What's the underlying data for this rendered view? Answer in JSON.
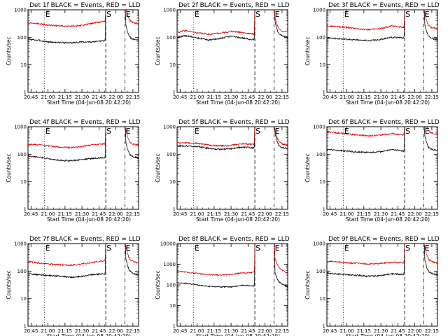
{
  "chart_data": {
    "type": "line",
    "layout": "3x3 grid",
    "legend": "in panel titles (BLACK = Events, RED = LLD)",
    "colors": {
      "events": "#000000",
      "lld": "#e00000",
      "markers": "#000000"
    },
    "yscale": "log",
    "grid": false,
    "xlabel": "Start Time (04-Jun-08 20:42:20)",
    "ylabel": "Counts/sec",
    "x_tick_labels": [
      "20:45",
      "21:00",
      "21:15",
      "21:30",
      "21:45",
      "22:00",
      "22:15"
    ],
    "xlim": [
      "20:42:20",
      "22:20:00"
    ],
    "markers": [
      {
        "label": "E",
        "time": "20:57",
        "style": "dotted"
      },
      {
        "label": "S",
        "time": "21:51",
        "style": "dashed"
      },
      {
        "label": "E",
        "time": "22:08",
        "style": "dash-dot"
      }
    ],
    "panels": [
      {
        "title": "Det 1f BLACK = Events, RED = LLD",
        "ylim": [
          1,
          1000
        ],
        "y_tick_labels": [
          "1",
          "10",
          "100",
          "1000"
        ],
        "xlabel": "",
        "ylabel": "Counts/sec",
        "series": [
          {
            "name": "Events",
            "color": "#000000",
            "x": [
              "20:42",
              "20:50",
              "21:00",
              "21:10",
              "21:20",
              "21:30",
              "21:40",
              "21:50",
              "21:51",
              "22:08",
              "22:12",
              "22:20"
            ],
            "values": [
              85,
              80,
              68,
              65,
              63,
              68,
              68,
              75,
              null,
              null,
              85,
              80
            ]
          },
          {
            "name": "LLD",
            "color": "#e00000",
            "x": [
              "20:42",
              "20:50",
              "21:00",
              "21:10",
              "21:20",
              "21:30",
              "21:40",
              "21:50",
              "21:51",
              "22:08",
              "22:12",
              "22:20"
            ],
            "values": [
              340,
              320,
              280,
              260,
              255,
              270,
              330,
              380,
              null,
              null,
              350,
              320
            ]
          }
        ]
      },
      {
        "title": "Det 2f BLACK = Events, RED = LLD",
        "ylim": [
          1,
          1000
        ],
        "y_tick_labels": [
          "1",
          "10",
          "100",
          "1000"
        ],
        "xlabel": "Start Time (04-Jun-08 20:42:20)",
        "ylabel": "",
        "series": [
          {
            "name": "Events",
            "color": "#000000",
            "x": [
              "20:42",
              "20:50",
              "21:00",
              "21:10",
              "21:20",
              "21:30",
              "21:40",
              "21:50",
              "21:51",
              "22:08",
              "22:12",
              "22:20"
            ],
            "values": [
              100,
              115,
              95,
              80,
              90,
              110,
              95,
              80,
              null,
              null,
              115,
              100
            ]
          },
          {
            "name": "LLD",
            "color": "#e00000",
            "x": [
              "20:42",
              "20:50",
              "21:00",
              "21:10",
              "21:20",
              "21:30",
              "21:40",
              "21:50",
              "21:51",
              "22:08",
              "22:12",
              "22:20"
            ],
            "values": [
              150,
              175,
              145,
              130,
              140,
              165,
              150,
              130,
              null,
              null,
              170,
              155
            ]
          }
        ]
      },
      {
        "title": "Det 3f BLACK = Events, RED = LLD",
        "ylim": [
          1,
          1000
        ],
        "y_tick_labels": [
          "1",
          "10",
          "100",
          "1000"
        ],
        "xlabel": "",
        "ylabel": "",
        "series": [
          {
            "name": "Events",
            "color": "#000000",
            "x": [
              "20:42",
              "20:50",
              "21:00",
              "21:10",
              "21:20",
              "21:30",
              "21:40",
              "21:50",
              "21:51",
              "22:08",
              "22:12",
              "22:20"
            ],
            "values": [
              95,
              90,
              85,
              80,
              75,
              85,
              100,
              95,
              null,
              null,
              90,
              85
            ]
          },
          {
            "name": "LLD",
            "color": "#e00000",
            "x": [
              "20:42",
              "20:50",
              "21:00",
              "21:10",
              "21:20",
              "21:30",
              "21:40",
              "21:50",
              "21:51",
              "22:08",
              "22:12",
              "22:20"
            ],
            "values": [
              260,
              250,
              230,
              200,
              190,
              210,
              260,
              230,
              null,
              null,
              220,
              210
            ]
          }
        ]
      },
      {
        "title": "Det 4f BLACK = Events, RED = LLD",
        "ylim": [
          1,
          1000
        ],
        "y_tick_labels": [
          "1",
          "10",
          "100",
          "1000"
        ],
        "xlabel": "",
        "ylabel": "Counts/sec",
        "series": [
          {
            "name": "Events",
            "color": "#000000",
            "x": [
              "20:42",
              "20:50",
              "21:00",
              "21:10",
              "21:20",
              "21:30",
              "21:40",
              "21:50",
              "21:51",
              "22:08",
              "22:12",
              "22:20"
            ],
            "values": [
              85,
              80,
              70,
              60,
              58,
              65,
              70,
              75,
              null,
              null,
              80,
              75
            ]
          },
          {
            "name": "LLD",
            "color": "#e00000",
            "x": [
              "20:42",
              "20:50",
              "21:00",
              "21:10",
              "21:20",
              "21:30",
              "21:40",
              "21:50",
              "21:51",
              "22:08",
              "22:12",
              "22:20"
            ],
            "values": [
              230,
              220,
              200,
              180,
              175,
              190,
              220,
              240,
              null,
              null,
              230,
              220
            ]
          }
        ]
      },
      {
        "title": "Det 5f BLACK = Events, RED = LLD",
        "ylim": [
          1,
          1000
        ],
        "y_tick_labels": [
          "1",
          "10",
          "100",
          "1000"
        ],
        "xlabel": "Start Time (04-Jun-08 20:42:20)",
        "ylabel": "",
        "series": [
          {
            "name": "Events",
            "color": "#000000",
            "x": [
              "20:42",
              "20:50",
              "21:00",
              "21:10",
              "21:20",
              "21:30",
              "21:40",
              "21:50",
              "21:51",
              "22:08",
              "22:12",
              "22:20"
            ],
            "values": [
              200,
              200,
              190,
              165,
              150,
              160,
              180,
              170,
              null,
              null,
              175,
              160
            ]
          },
          {
            "name": "LLD",
            "color": "#e00000",
            "x": [
              "20:42",
              "20:50",
              "21:00",
              "21:10",
              "21:20",
              "21:30",
              "21:40",
              "21:50",
              "21:51",
              "22:08",
              "22:12",
              "22:20"
            ],
            "values": [
              260,
              260,
              250,
              215,
              200,
              210,
              240,
              225,
              null,
              null,
              240,
              220
            ]
          }
        ]
      },
      {
        "title": "Det 6f BLACK = Events, RED = LLD",
        "ylim": [
          1,
          1000
        ],
        "y_tick_labels": [
          "1",
          "10",
          "100",
          "1000"
        ],
        "xlabel": "",
        "ylabel": "",
        "series": [
          {
            "name": "Events",
            "color": "#000000",
            "x": [
              "20:42",
              "20:50",
              "21:00",
              "21:10",
              "21:20",
              "21:30",
              "21:40",
              "21:50",
              "21:51",
              "22:08",
              "22:12",
              "22:20"
            ],
            "values": [
              150,
              140,
              130,
              120,
              115,
              125,
              150,
              130,
              null,
              null,
              145,
              140
            ]
          },
          {
            "name": "LLD",
            "color": "#e00000",
            "x": [
              "20:42",
              "20:50",
              "21:00",
              "21:10",
              "21:20",
              "21:30",
              "21:40",
              "21:50",
              "21:51",
              "22:08",
              "22:12",
              "22:20"
            ],
            "values": [
              650,
              600,
              550,
              500,
              470,
              500,
              560,
              500,
              null,
              null,
              580,
              560
            ]
          }
        ]
      },
      {
        "title": "Det 7f BLACK = Events, RED = LLD",
        "ylim": [
          1,
          1000
        ],
        "y_tick_labels": [
          "1",
          "10",
          "100",
          "1000"
        ],
        "xlabel": "",
        "ylabel": "Counts/sec",
        "series": [
          {
            "name": "Events",
            "color": "#000000",
            "x": [
              "20:42",
              "20:50",
              "21:00",
              "21:10",
              "21:20",
              "21:30",
              "21:40",
              "21:50",
              "21:51",
              "22:08",
              "22:12",
              "22:20"
            ],
            "values": [
              80,
              75,
              70,
              65,
              60,
              65,
              75,
              80,
              null,
              null,
              85,
              75
            ]
          },
          {
            "name": "LLD",
            "color": "#e00000",
            "x": [
              "20:42",
              "20:50",
              "21:00",
              "21:10",
              "21:20",
              "21:30",
              "21:40",
              "21:50",
              "21:51",
              "22:08",
              "22:12",
              "22:20"
            ],
            "values": [
              230,
              200,
              180,
              170,
              165,
              180,
              210,
              240,
              null,
              null,
              230,
              200
            ]
          }
        ]
      },
      {
        "title": "Det 8f BLACK = Events, RED = LLD",
        "ylim": [
          1,
          10000
        ],
        "y_tick_labels": [
          "1",
          "10",
          "100",
          "1000",
          "10000"
        ],
        "xlabel": "Start Time (04-Jun-08 20:42:20)",
        "ylabel": "",
        "series": [
          {
            "name": "Events",
            "color": "#000000",
            "x": [
              "20:42",
              "20:50",
              "21:00",
              "21:10",
              "21:20",
              "21:30",
              "21:40",
              "21:50",
              "21:51",
              "22:08",
              "22:12",
              "22:20"
            ],
            "values": [
              130,
              120,
              100,
              85,
              80,
              80,
              95,
              90,
              null,
              null,
              120,
              80
            ]
          },
          {
            "name": "LLD",
            "color": "#e00000",
            "x": [
              "20:42",
              "20:50",
              "21:00",
              "21:10",
              "21:20",
              "21:30",
              "21:40",
              "21:50",
              "21:51",
              "22:08",
              "22:12",
              "22:20"
            ],
            "values": [
              450,
              420,
              360,
              310,
              300,
              320,
              380,
              400,
              null,
              null,
              600,
              350
            ]
          }
        ]
      },
      {
        "title": "Det 9f BLACK = Events, RED = LLD",
        "ylim": [
          1,
          1000
        ],
        "y_tick_labels": [
          "1",
          "10",
          "100",
          "1000"
        ],
        "xlabel": "",
        "ylabel": "",
        "series": [
          {
            "name": "Events",
            "color": "#000000",
            "x": [
              "20:42",
              "20:50",
              "21:00",
              "21:10",
              "21:20",
              "21:30",
              "21:40",
              "21:50",
              "21:51",
              "22:08",
              "22:12",
              "22:20"
            ],
            "values": [
              85,
              80,
              75,
              70,
              65,
              70,
              80,
              75,
              null,
              null,
              80,
              75
            ]
          },
          {
            "name": "LLD",
            "color": "#e00000",
            "x": [
              "20:42",
              "20:50",
              "21:00",
              "21:10",
              "21:20",
              "21:30",
              "21:40",
              "21:50",
              "21:51",
              "22:08",
              "22:12",
              "22:20"
            ],
            "values": [
              230,
              220,
              200,
              190,
              180,
              190,
              210,
              200,
              null,
              null,
              220,
              200
            ]
          }
        ]
      }
    ]
  }
}
